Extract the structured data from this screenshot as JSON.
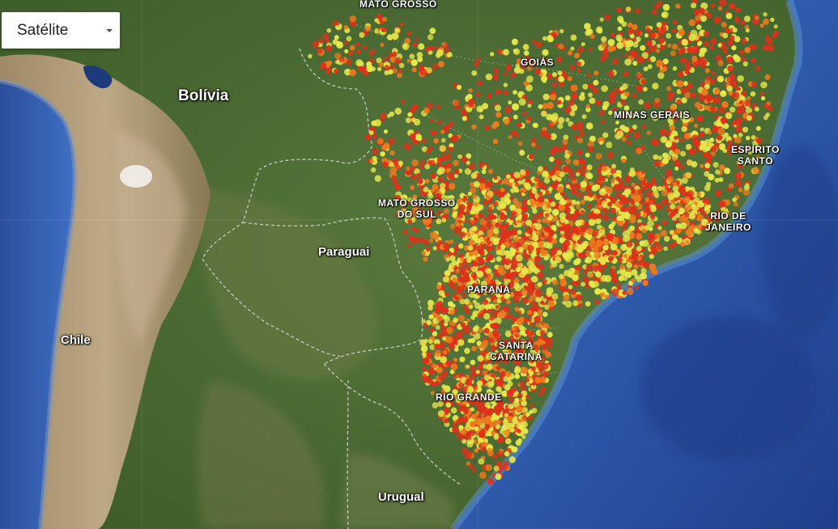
{
  "map_type": {
    "selected": "Satélite"
  },
  "labels": {
    "countries": {
      "bolivia": "Bolívia",
      "paraguay": "Paraguai",
      "chile": "Chile",
      "uruguay": "Urugual"
    },
    "states": {
      "mato_grosso": "MATO GROSSO",
      "goias": "GOIÁS",
      "minas_gerais": "MINAS GERAIS",
      "espirito_santo_1": "ESPÍRITO",
      "espirito_santo_2": "SANTO",
      "mato_grosso_do_sul_1": "MATO GROSSO",
      "mato_grosso_do_sul_2": "DO SUL",
      "rio_de_janeiro_1": "RIO DE",
      "rio_de_janeiro_2": "JANEIRO",
      "parana": "PARANÁ",
      "santa_catarina_1": "SANTA",
      "santa_catarina_2": "CATARINA",
      "rio_grande_do_sul": "RIO GRANDE"
    }
  },
  "colors": {
    "ocean": "#2a58a8",
    "land_green": "#4c6b34",
    "andes_tan": "#b59a7a",
    "point_red": "#e0301a",
    "point_orange": "#f07a1c",
    "point_yellow": "#e6e84a"
  }
}
